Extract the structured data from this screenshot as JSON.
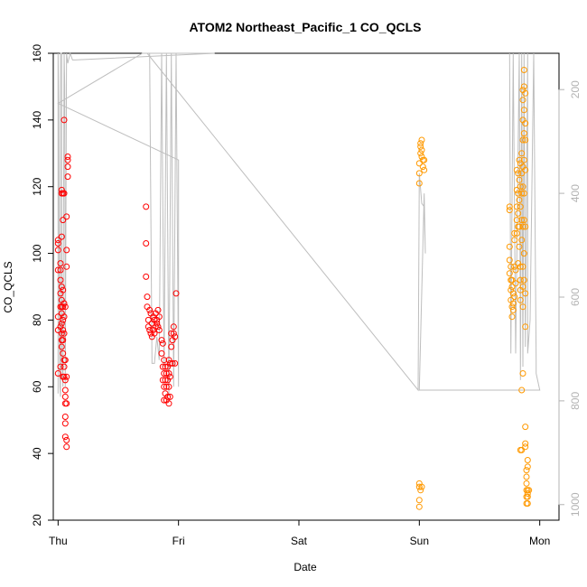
{
  "chart_data": {
    "type": "scatter",
    "title": "ATOM2 Northeast_Pacific_1 CO_QCLS",
    "xlabel": "Date",
    "ylabel": "CO_QCLS",
    "x_tick_labels": [
      "Thu",
      "Fri",
      "Sat",
      "Sun",
      "Mon"
    ],
    "x_tick_days": [
      0,
      1,
      2,
      3,
      4
    ],
    "xlim": [
      -0.04,
      4.16
    ],
    "ylim": [
      20,
      160
    ],
    "y_ticks": [
      20,
      40,
      60,
      80,
      100,
      120,
      140,
      160
    ],
    "y2_ticks": [
      200,
      400,
      600,
      800,
      1000
    ],
    "y2_lim": [
      1030,
      130
    ],
    "y2_note": "right axis is pressure-like, reversed",
    "grid": false,
    "colors": {
      "red_series": "#ff0000",
      "orange_series": "#ff9900",
      "line": "#bebebe",
      "right_axis": "#b3b3b3"
    },
    "series": [
      {
        "color": "#ff0000",
        "points": [
          [
            0.0,
            64
          ],
          [
            0.0,
            77
          ],
          [
            0.0,
            81
          ],
          [
            0.0,
            95
          ],
          [
            0.0,
            101
          ],
          [
            0.0,
            103
          ],
          [
            0.0,
            104
          ],
          [
            0.02,
            66
          ],
          [
            0.02,
            78
          ],
          [
            0.02,
            84
          ],
          [
            0.02,
            88
          ],
          [
            0.02,
            92
          ],
          [
            0.02,
            97
          ],
          [
            0.02,
            95
          ],
          [
            0.03,
            72
          ],
          [
            0.03,
            74
          ],
          [
            0.03,
            76
          ],
          [
            0.03,
            79
          ],
          [
            0.03,
            82
          ],
          [
            0.03,
            84
          ],
          [
            0.03,
            86
          ],
          [
            0.03,
            90
          ],
          [
            0.03,
            105
          ],
          [
            0.03,
            118
          ],
          [
            0.03,
            119
          ],
          [
            0.04,
            63
          ],
          [
            0.04,
            70
          ],
          [
            0.04,
            74
          ],
          [
            0.04,
            77
          ],
          [
            0.04,
            80
          ],
          [
            0.04,
            84
          ],
          [
            0.04,
            89
          ],
          [
            0.04,
            110
          ],
          [
            0.04,
            118
          ],
          [
            0.05,
            63
          ],
          [
            0.05,
            66
          ],
          [
            0.05,
            68
          ],
          [
            0.05,
            76
          ],
          [
            0.05,
            81
          ],
          [
            0.05,
            85
          ],
          [
            0.05,
            118
          ],
          [
            0.05,
            140
          ],
          [
            0.06,
            45
          ],
          [
            0.06,
            49
          ],
          [
            0.06,
            51
          ],
          [
            0.06,
            55
          ],
          [
            0.06,
            57
          ],
          [
            0.06,
            59
          ],
          [
            0.06,
            62
          ],
          [
            0.06,
            68
          ],
          [
            0.06,
            84
          ],
          [
            0.07,
            42
          ],
          [
            0.07,
            44
          ],
          [
            0.07,
            55
          ],
          [
            0.07,
            63
          ],
          [
            0.07,
            96
          ],
          [
            0.07,
            101
          ],
          [
            0.07,
            111
          ],
          [
            0.08,
            123
          ],
          [
            0.08,
            126
          ],
          [
            0.08,
            128
          ],
          [
            0.08,
            129
          ],
          [
            0.73,
            114
          ],
          [
            0.73,
            103
          ],
          [
            0.73,
            93
          ],
          [
            0.74,
            87
          ],
          [
            0.74,
            84
          ],
          [
            0.75,
            80
          ],
          [
            0.75,
            78
          ],
          [
            0.76,
            83
          ],
          [
            0.76,
            77
          ],
          [
            0.77,
            82
          ],
          [
            0.77,
            76
          ],
          [
            0.78,
            79
          ],
          [
            0.78,
            75
          ],
          [
            0.79,
            81
          ],
          [
            0.79,
            77
          ],
          [
            0.8,
            80
          ],
          [
            0.8,
            76
          ],
          [
            0.81,
            82
          ],
          [
            0.81,
            78
          ],
          [
            0.82,
            79
          ],
          [
            0.82,
            80
          ],
          [
            0.83,
            83
          ],
          [
            0.83,
            78
          ],
          [
            0.84,
            81
          ],
          [
            0.84,
            77
          ],
          [
            0.86,
            74
          ],
          [
            0.86,
            70
          ],
          [
            0.87,
            73
          ],
          [
            0.87,
            66
          ],
          [
            0.87,
            62
          ],
          [
            0.88,
            68
          ],
          [
            0.88,
            64
          ],
          [
            0.88,
            60
          ],
          [
            0.88,
            56
          ],
          [
            0.89,
            66
          ],
          [
            0.89,
            62
          ],
          [
            0.89,
            58
          ],
          [
            0.9,
            64
          ],
          [
            0.9,
            60
          ],
          [
            0.9,
            56
          ],
          [
            0.91,
            66
          ],
          [
            0.91,
            62
          ],
          [
            0.91,
            57
          ],
          [
            0.92,
            68
          ],
          [
            0.92,
            64
          ],
          [
            0.92,
            60
          ],
          [
            0.92,
            55
          ],
          [
            0.93,
            67
          ],
          [
            0.93,
            63
          ],
          [
            0.93,
            57
          ],
          [
            0.94,
            72
          ],
          [
            0.94,
            76
          ],
          [
            0.95,
            74
          ],
          [
            0.95,
            67
          ],
          [
            0.96,
            76
          ],
          [
            0.96,
            78
          ],
          [
            0.97,
            75
          ],
          [
            0.97,
            67
          ],
          [
            0.98,
            88
          ]
        ]
      },
      {
        "color": "#ff9900",
        "points": [
          [
            3.0,
            121
          ],
          [
            3.0,
            124
          ],
          [
            3.0,
            127
          ],
          [
            3.0,
            30
          ],
          [
            3.0,
            31
          ],
          [
            3.0,
            26
          ],
          [
            3.0,
            24
          ],
          [
            3.01,
            130
          ],
          [
            3.01,
            132
          ],
          [
            3.01,
            133
          ],
          [
            3.01,
            29
          ],
          [
            3.02,
            129
          ],
          [
            3.02,
            131
          ],
          [
            3.02,
            134
          ],
          [
            3.02,
            30
          ],
          [
            3.03,
            126
          ],
          [
            3.03,
            128
          ],
          [
            3.04,
            125
          ],
          [
            3.04,
            128
          ],
          [
            3.75,
            113
          ],
          [
            3.75,
            114
          ],
          [
            3.75,
            102
          ],
          [
            3.75,
            98
          ],
          [
            3.75,
            94
          ],
          [
            3.76,
            96
          ],
          [
            3.76,
            92
          ],
          [
            3.76,
            89
          ],
          [
            3.76,
            86
          ],
          [
            3.77,
            90
          ],
          [
            3.77,
            84
          ],
          [
            3.77,
            81
          ],
          [
            3.77,
            92
          ],
          [
            3.78,
            88
          ],
          [
            3.78,
            85
          ],
          [
            3.78,
            83
          ],
          [
            3.79,
            106
          ],
          [
            3.79,
            104
          ],
          [
            3.79,
            96
          ],
          [
            3.79,
            87
          ],
          [
            3.8,
            95
          ],
          [
            3.8,
            91
          ],
          [
            3.81,
            125
          ],
          [
            3.81,
            119
          ],
          [
            3.81,
            114
          ],
          [
            3.81,
            110
          ],
          [
            3.81,
            106
          ],
          [
            3.82,
            124
          ],
          [
            3.82,
            118
          ],
          [
            3.82,
            112
          ],
          [
            3.82,
            108
          ],
          [
            3.82,
            97
          ],
          [
            3.83,
            128
          ],
          [
            3.83,
            122
          ],
          [
            3.83,
            116
          ],
          [
            3.83,
            108
          ],
          [
            3.83,
            102
          ],
          [
            3.84,
            127
          ],
          [
            3.84,
            120
          ],
          [
            3.84,
            114
          ],
          [
            3.84,
            96
          ],
          [
            3.84,
            92
          ],
          [
            3.84,
            89
          ],
          [
            3.84,
            86
          ],
          [
            3.84,
            41
          ],
          [
            3.85,
            130
          ],
          [
            3.85,
            124
          ],
          [
            3.85,
            118
          ],
          [
            3.85,
            110
          ],
          [
            3.85,
            104
          ],
          [
            3.85,
            59
          ],
          [
            3.85,
            41
          ],
          [
            3.86,
            149
          ],
          [
            3.86,
            146
          ],
          [
            3.86,
            140
          ],
          [
            3.86,
            134
          ],
          [
            3.86,
            126
          ],
          [
            3.86,
            120
          ],
          [
            3.86,
            108
          ],
          [
            3.86,
            96
          ],
          [
            3.86,
            90
          ],
          [
            3.86,
            84
          ],
          [
            3.86,
            64
          ],
          [
            3.87,
            155
          ],
          [
            3.87,
            150
          ],
          [
            3.87,
            143
          ],
          [
            3.87,
            136
          ],
          [
            3.87,
            128
          ],
          [
            3.87,
            118
          ],
          [
            3.87,
            110
          ],
          [
            3.87,
            100
          ],
          [
            3.87,
            92
          ],
          [
            3.88,
            148
          ],
          [
            3.88,
            139
          ],
          [
            3.88,
            134
          ],
          [
            3.88,
            125
          ],
          [
            3.88,
            108
          ],
          [
            3.88,
            88
          ],
          [
            3.88,
            78
          ],
          [
            3.88,
            48
          ],
          [
            3.88,
            43
          ],
          [
            3.88,
            42
          ],
          [
            3.89,
            35
          ],
          [
            3.89,
            33
          ],
          [
            3.89,
            31
          ],
          [
            3.89,
            29
          ],
          [
            3.89,
            27
          ],
          [
            3.89,
            25
          ],
          [
            3.9,
            38
          ],
          [
            3.9,
            36
          ],
          [
            3.9,
            29
          ],
          [
            3.9,
            28
          ],
          [
            3.9,
            27
          ],
          [
            3.9,
            25
          ],
          [
            3.91,
            29
          ]
        ]
      }
    ],
    "line_trace": [
      [
        0.0,
        58
      ],
      [
        0.0,
        160
      ],
      [
        0.005,
        145
      ],
      [
        0.01,
        85
      ],
      [
        0.015,
        60
      ],
      [
        0.02,
        57
      ],
      [
        0.02,
        160
      ],
      [
        0.03,
        160
      ],
      [
        0.03,
        70
      ],
      [
        0.04,
        60
      ],
      [
        0.05,
        160
      ],
      [
        0.055,
        150
      ],
      [
        0.06,
        60
      ],
      [
        0.07,
        160
      ],
      [
        0.08,
        157
      ],
      [
        0.1,
        160
      ],
      [
        0.12,
        158
      ],
      [
        0.14,
        158
      ],
      [
        1.3,
        160
      ],
      [
        1.3,
        160
      ],
      [
        0.7,
        160
      ],
      [
        0.7,
        160
      ],
      [
        0.0,
        145
      ],
      [
        1.0,
        128
      ],
      [
        1.0,
        60
      ],
      [
        0.98,
        160
      ],
      [
        0.96,
        60
      ],
      [
        0.94,
        160
      ],
      [
        0.92,
        57
      ],
      [
        0.9,
        160
      ],
      [
        0.88,
        66
      ],
      [
        0.86,
        160
      ],
      [
        0.84,
        68
      ],
      [
        0.82,
        75
      ],
      [
        0.8,
        67
      ],
      [
        0.78,
        67
      ],
      [
        0.76,
        160
      ],
      [
        0.74,
        160
      ],
      [
        2.99,
        59
      ],
      [
        3.0,
        124
      ],
      [
        3.02,
        115
      ],
      [
        3.04,
        114
      ],
      [
        3.05,
        100
      ],
      [
        3.04,
        118
      ],
      [
        3.0,
        59
      ],
      [
        4.0,
        59
      ],
      [
        3.97,
        64
      ],
      [
        3.97,
        68
      ],
      [
        3.95,
        160
      ],
      [
        3.92,
        80
      ],
      [
        3.9,
        70
      ],
      [
        3.9,
        160
      ],
      [
        3.88,
        72
      ],
      [
        3.87,
        160
      ],
      [
        3.86,
        66
      ],
      [
        3.85,
        160
      ],
      [
        3.84,
        62
      ],
      [
        3.83,
        160
      ],
      [
        3.8,
        70
      ],
      [
        3.78,
        160
      ],
      [
        3.76,
        70
      ],
      [
        3.75,
        160
      ]
    ]
  }
}
